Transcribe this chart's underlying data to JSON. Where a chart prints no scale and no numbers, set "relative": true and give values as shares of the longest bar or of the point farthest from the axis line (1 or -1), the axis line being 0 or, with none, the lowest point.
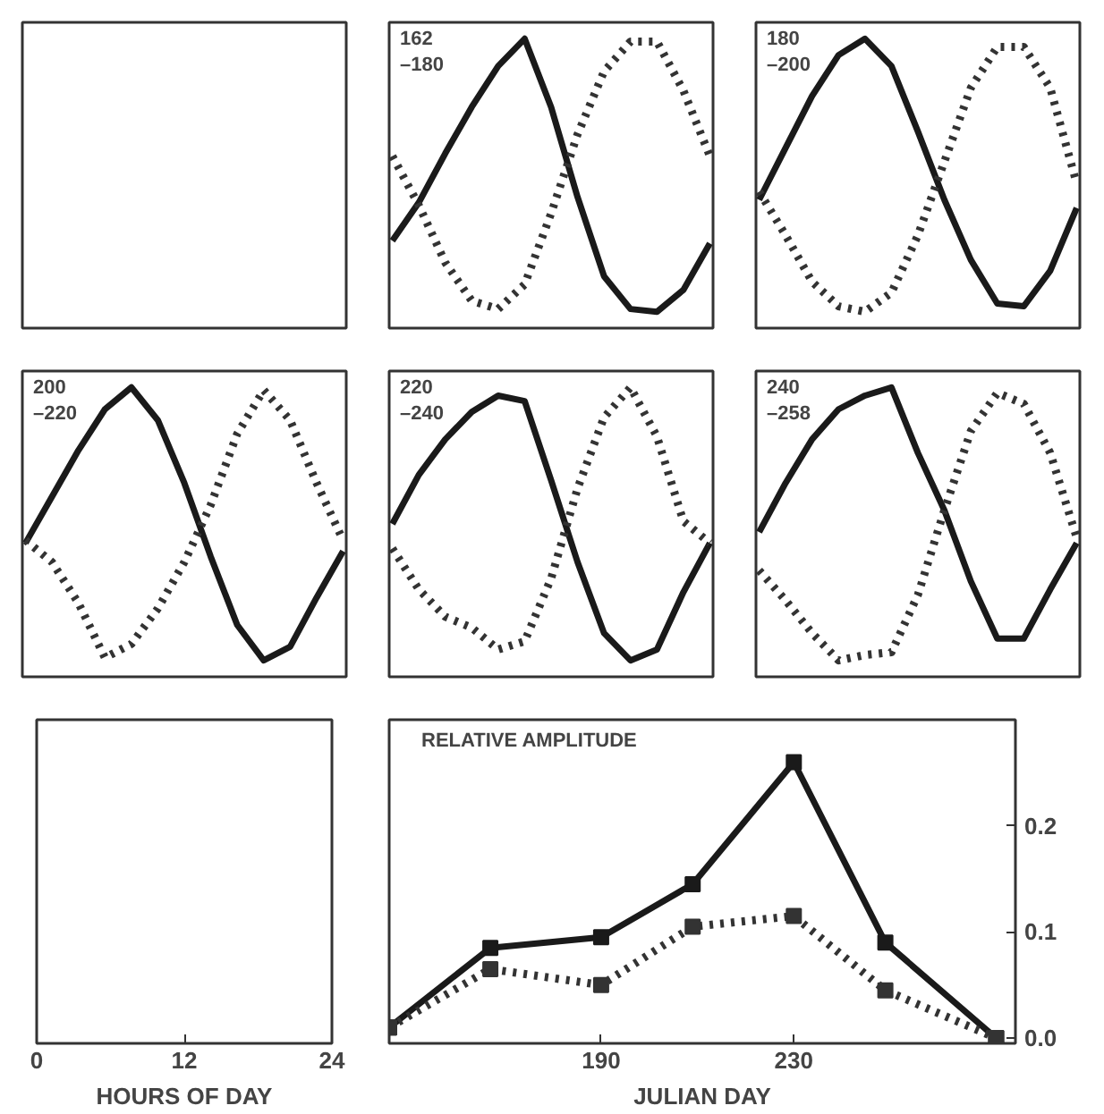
{
  "chart_data": [
    {
      "type": "line",
      "relative": true,
      "categories": [
        null,
        null,
        null,
        null,
        null,
        null,
        null,
        null,
        null,
        null,
        null,
        null,
        null
      ],
      "annotations": [
        "162\n–180"
      ],
      "series": [
        {
          "color": "#1a1a1a",
          "line_style": "solid",
          "values": [
            0.26,
            0.4,
            0.58,
            0.75,
            0.9,
            1.0,
            0.75,
            0.42,
            0.13,
            0.01,
            0,
            0.08,
            0.25
          ]
        },
        {
          "color": "#333333",
          "line_style": "dotted",
          "values": [
            0.57,
            0.39,
            0.18,
            0.04,
            0.01,
            0.1,
            0.36,
            0.65,
            0.88,
            0.99,
            0.99,
            0.81,
            0.57
          ]
        }
      ]
    },
    {
      "type": "line",
      "relative": true,
      "categories": [
        null,
        null,
        null,
        null,
        null,
        null,
        null,
        null,
        null,
        null,
        null,
        null,
        null
      ],
      "annotations": [
        "180\n–200"
      ],
      "series": [
        {
          "color": "#1a1a1a",
          "line_style": "solid",
          "values": [
            0.41,
            0.6,
            0.79,
            0.94,
            1.0,
            0.9,
            0.66,
            0.41,
            0.19,
            0.03,
            0.02,
            0.15,
            0.38
          ]
        },
        {
          "color": "#333333",
          "line_style": "dotted",
          "values": [
            0.44,
            0.28,
            0.11,
            0.02,
            0,
            0.07,
            0.28,
            0.55,
            0.82,
            0.97,
            0.97,
            0.82,
            0.47
          ]
        }
      ]
    },
    {
      "type": "line",
      "relative": true,
      "categories": [
        null,
        null,
        null,
        null,
        null,
        null,
        null,
        null,
        null,
        null,
        null,
        null,
        null
      ],
      "annotations": [
        "200\n–220"
      ],
      "series": [
        {
          "color": "#1a1a1a",
          "line_style": "solid",
          "values": [
            0.43,
            0.6,
            0.77,
            0.92,
            1.0,
            0.88,
            0.65,
            0.38,
            0.13,
            0,
            0.05,
            0.23,
            0.4
          ]
        },
        {
          "color": "#333333",
          "line_style": "dotted",
          "values": [
            0.44,
            0.36,
            0.21,
            0.01,
            0.06,
            0.19,
            0.36,
            0.57,
            0.83,
            0.99,
            0.88,
            0.65,
            0.44
          ]
        }
      ]
    },
    {
      "type": "line",
      "relative": true,
      "categories": [
        null,
        null,
        null,
        null,
        null,
        null,
        null,
        null,
        null,
        null,
        null,
        null,
        null
      ],
      "annotations": [
        "220\n–240"
      ],
      "series": [
        {
          "color": "#1a1a1a",
          "line_style": "solid",
          "values": [
            0.5,
            0.68,
            0.81,
            0.91,
            0.97,
            0.95,
            0.66,
            0.36,
            0.1,
            0,
            0.04,
            0.25,
            0.43
          ]
        },
        {
          "color": "#333333",
          "line_style": "dotted",
          "values": [
            0.41,
            0.26,
            0.16,
            0.12,
            0.04,
            0.07,
            0.3,
            0.63,
            0.89,
            1.0,
            0.82,
            0.51,
            0.43
          ]
        }
      ]
    },
    {
      "type": "line",
      "relative": true,
      "categories": [
        null,
        null,
        null,
        null,
        null,
        null,
        null,
        null,
        null,
        null,
        null,
        null,
        null
      ],
      "annotations": [
        "240\n–258"
      ],
      "series": [
        {
          "color": "#1a1a1a",
          "line_style": "solid",
          "values": [
            0.47,
            0.65,
            0.81,
            0.92,
            0.97,
            1.0,
            0.76,
            0.55,
            0.29,
            0.08,
            0.08,
            0.26,
            0.43
          ]
        },
        {
          "color": "#333333",
          "line_style": "dotted",
          "values": [
            0.33,
            0.22,
            0.1,
            0,
            0.02,
            0.03,
            0.24,
            0.55,
            0.84,
            0.98,
            0.94,
            0.76,
            0.45
          ]
        }
      ]
    },
    {
      "type": "other",
      "xlabel": "HOURS OF DAY",
      "annotations": [
        "0",
        "12",
        "24"
      ]
    },
    {
      "type": "line",
      "marker": "square",
      "xlabel": "JULIAN DAY",
      "annotations": [
        "RELATIVE AMPLITUDE"
      ],
      "xlim": [
        146,
        276
      ],
      "xticks": [
        190,
        230
      ],
      "ylim": [
        -0.005,
        0.3
      ],
      "yticks": [
        {
          "value": 0,
          "label": "0.0"
        },
        0.1,
        0.2
      ],
      "x": [
        146,
        167,
        190,
        209,
        230,
        249,
        272
      ],
      "series": [
        {
          "color": "#1a1a1a",
          "line_style": "solid",
          "values": [
            0.01,
            0.085,
            0.095,
            0.145,
            0.26,
            0.09,
            0
          ]
        },
        {
          "color": "#333333",
          "line_style": "dotted",
          "values": [
            0.01,
            0.065,
            0.05,
            0.105,
            0.115,
            0.045,
            0
          ]
        }
      ]
    }
  ]
}
